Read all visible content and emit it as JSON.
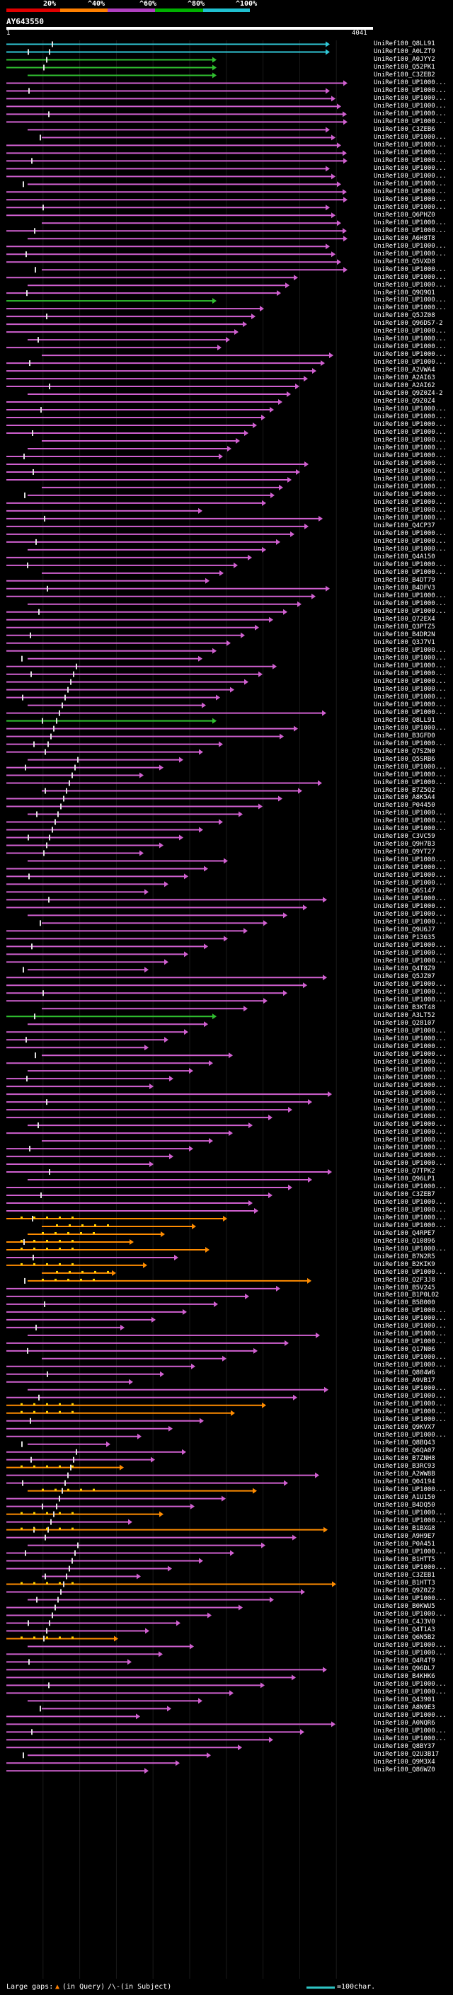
{
  "scale": {
    "ticks": [
      {
        "label": "20%",
        "color": "#e00000"
      },
      {
        "label": "^40%",
        "color": "#ff8000"
      },
      {
        "label": "^60%",
        "color": "#b040c0"
      },
      {
        "label": "^80%",
        "color": "#00b000"
      },
      {
        "label": "^100%",
        "color": "#20c0d0"
      }
    ]
  },
  "query": {
    "id": "AY643550",
    "start": "1",
    "end": "4041"
  },
  "hits": [
    "UniRef100_Q8LL91",
    "UniRef100_A0LZT9",
    "UniRef100_A0JYY2",
    "UniRef100_Q52PK1",
    "UniRef100_C3ZEB2",
    "UniRef100_UP1000...",
    "UniRef100_UP1000...",
    "UniRef100_UP1000...",
    "UniRef100_UP1000...",
    "UniRef100_UP1000...",
    "UniRef100_UP1000...",
    "UniRef100_C3ZEB6",
    "UniRef100_UP1000...",
    "UniRef100_UP1000...",
    "UniRef100_UP1000...",
    "UniRef100_UP1000...",
    "UniRef100_UP1000...",
    "UniRef100_UP1000...",
    "UniRef100_UP1000...",
    "UniRef100_UP1000...",
    "UniRef100_UP1000...",
    "UniRef100_UP1000...",
    "UniRef100_Q6PHZ0",
    "UniRef100_UP1000...",
    "UniRef100_UP1000...",
    "UniRef100_A6H8T8",
    "UniRef100_UP1000...",
    "UniRef100_UP1000...",
    "UniRef100_Q5VXD8",
    "UniRef100_UP1000...",
    "UniRef100_UP1000...",
    "UniRef100_UP1000...",
    "UniRef100_Q9Q9Q1",
    "UniRef100_UP1000...",
    "UniRef100_UP1000...",
    "UniRef100_Q5JZ08",
    "UniRef100_Q96DS7-2",
    "UniRef100_UP1000...",
    "UniRef100_UP1000...",
    "UniRef100_UP1000...",
    "UniRef100_UP1000...",
    "UniRef100_UP1000...",
    "UniRef100_A2VWA4",
    "UniRef100_A2AI63",
    "UniRef100_A2AI62",
    "UniRef100_Q9Z0Z4-2",
    "UniRef100_Q9Z0Z4",
    "UniRef100_UP1000...",
    "UniRef100_UP1000...",
    "UniRef100_UP1000...",
    "UniRef100_UP1000...",
    "UniRef100_UP1000...",
    "UniRef100_UP1000...",
    "UniRef100_UP1000...",
    "UniRef100_UP1000...",
    "UniRef100_UP1000...",
    "UniRef100_UP1000...",
    "UniRef100_UP1000...",
    "UniRef100_UP1000...",
    "UniRef100_UP1000...",
    "UniRef100_UP1000...",
    "UniRef100_UP1000...",
    "UniRef100_Q4CP37",
    "UniRef100_UP1000...",
    "UniRef100_UP1000...",
    "UniRef100_UP1000...",
    "UniRef100_Q4A150",
    "UniRef100_UP1000...",
    "UniRef100_UP1000...",
    "UniRef100_B4DT79",
    "UniRef100_B4DFV3",
    "UniRef100_UP1000...",
    "UniRef100_UP1000...",
    "UniRef100_UP1000...",
    "UniRef100_Q72EX4",
    "UniRef100_Q3PTZ5",
    "UniRef100_B4DR2N",
    "UniRef100_Q3J7V1",
    "UniRef100_UP1000...",
    "UniRef100_UP1000...",
    "UniRef100_UP1000...",
    "UniRef100_UP1000...",
    "UniRef100_UP1000...",
    "UniRef100_UP1000...",
    "UniRef100_UP1000...",
    "UniRef100_UP1000...",
    "UniRef100_UP1000...",
    "UniRef100_Q8LL91",
    "UniRef100_UP1000...",
    "UniRef100_B3GFD0",
    "UniRef100_UP1000...",
    "UniRef100_Q7SZN0",
    "UniRef100_Q5SRB6",
    "UniRef100_UP1000...",
    "UniRef100_UP1000...",
    "UniRef100_UP1000...",
    "UniRef100_B7Z5Q2",
    "UniRef100_A8K5A4",
    "UniRef100_P04450",
    "UniRef100_UP1000...",
    "UniRef100_UP1000...",
    "UniRef100_UP1000...",
    "UniRef100_C3VC59",
    "UniRef100_Q9H7B3",
    "UniRef100_Q9YT27",
    "UniRef100_UP1000...",
    "UniRef100_UP1000...",
    "UniRef100_UP1000...",
    "UniRef100_UP1000...",
    "UniRef100_Q6S147",
    "UniRef100_UP1000...",
    "UniRef100_UP1000...",
    "UniRef100_UP1000...",
    "UniRef100_UP1000...",
    "UniRef100_Q9U6J7",
    "UniRef100_P13635",
    "UniRef100_UP1000...",
    "UniRef100_UP1000...",
    "UniRef100_UP1000...",
    "UniRef100_Q4T8Z9",
    "UniRef100_Q5JZ07",
    "UniRef100_UP1000...",
    "UniRef100_UP1000...",
    "UniRef100_UP1000...",
    "UniRef100_B3KT48",
    "UniRef100_A3LT52",
    "UniRef100_Q28107",
    "UniRef100_UP1000...",
    "UniRef100_UP1000...",
    "UniRef100_UP1000...",
    "UniRef100_UP1000...",
    "UniRef100_UP1000...",
    "UniRef100_UP1000...",
    "UniRef100_UP1000...",
    "UniRef100_UP1000...",
    "UniRef100_UP1000...",
    "UniRef100_UP1000...",
    "UniRef100_UP1000...",
    "UniRef100_UP1000...",
    "UniRef100_UP1000...",
    "UniRef100_UP1000...",
    "UniRef100_UP1000...",
    "UniRef100_UP1000...",
    "UniRef100_UP1000...",
    "UniRef100_UP1000...",
    "UniRef100_Q7TPK2",
    "UniRef100_Q96LP1",
    "UniRef100_UP1000...",
    "UniRef100_C3ZEB7",
    "UniRef100_UP1000...",
    "UniRef100_UP1000...",
    "UniRef100_UP1000...",
    "UniRef100_UP1000...",
    "UniRef100_Q4RPE7",
    "UniRef100_Q10896",
    "UniRef100_UP1000...",
    "UniRef100_B7N2R5",
    "UniRef100_B2KIK9",
    "UniRef100_UP1000...",
    "UniRef100_Q2F3J8",
    "UniRef100_B5V245",
    "UniRef100_B1P0L02",
    "UniRef100_B5B000",
    "UniRef100_UP1000...",
    "UniRef100_UP1000...",
    "UniRef100_UP1000...",
    "UniRef100_UP1000...",
    "UniRef100_UP1000...",
    "UniRef100_Q17N06",
    "UniRef100_UP1000...",
    "UniRef100_UP1000...",
    "UniRef100_Q804W6",
    "UniRef100_A9VB17",
    "UniRef100_UP1000...",
    "UniRef100_UP1000...",
    "UniRef100_UP1000...",
    "UniRef100_UP1000...",
    "UniRef100_UP1000...",
    "UniRef100_Q9KVX7",
    "UniRef100_UP1000...",
    "UniRef100_Q8BQ43",
    "UniRef100_Q6QA07",
    "UniRef100_B7ZNH8",
    "UniRef100_B3RC93",
    "UniRef100_A2WW8B",
    "UniRef100_Q04194",
    "UniRef100_UP1000...",
    "UniRef100_A1U150",
    "UniRef100_B4DQ50",
    "UniRef100_UP1000...",
    "UniRef100_UP1000...",
    "UniRef100_B1BXG8",
    "UniRef100_A9H9E7",
    "UniRef100_P0A451",
    "UniRef100_UP1000...",
    "UniRef100_B1HTT5",
    "UniRef100_UP1000...",
    "UniRef100_C3ZEB1",
    "UniRef100_B1HTT3",
    "UniRef100_Q9Z0Z2",
    "UniRef100_UP1000...",
    "UniRef100_B0KWU5",
    "UniRef100_UP1000...",
    "UniRef100_C4J3V0",
    "UniRef100_Q4T1A3",
    "UniRef100_Q6N5B2",
    "UniRef100_UP1000...",
    "UniRef100_UP1000...",
    "UniRef100_Q4R4T9",
    "UniRef100_Q96DL7",
    "UniRef100_B4KHK6",
    "UniRef100_UP1000...",
    "UniRef100_UP1000...",
    "UniRef100_Q43901",
    "UniRef100_A8N9E3",
    "UniRef100_UP1000...",
    "UniRef100_A0NQR6",
    "UniRef100_UP1000...",
    "UniRef100_UP1000...",
    "UniRef100_Q8BY37",
    "UniRef100_Q2U3B17",
    "UniRef100_Q9M3X4",
    "UniRef100_Q86WZ0"
  ],
  "legend": {
    "text": "Large gaps:",
    "query_gap": "(in Query)",
    "subject_gap": "/\\-(in Subject)",
    "scale_text": "=100char."
  }
}
